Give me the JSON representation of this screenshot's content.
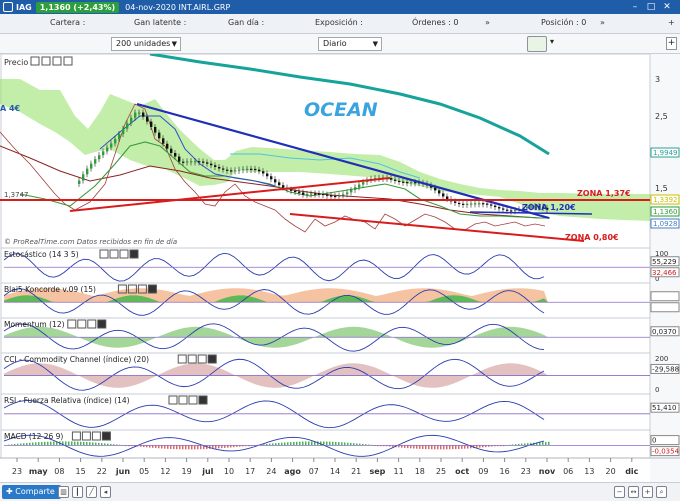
{
  "titlebar": {
    "symbol": "IAG",
    "price_change": "1,1360 (+2,43%)",
    "date_instrument": "04-nov-2020 INT.AIRL.GRP"
  },
  "infobar": {
    "cartera": "Cartera :",
    "gan_latente": "Gan latente :",
    "gan_dia": "Gan día :",
    "exposicion": "Exposición :",
    "ordenes": "Órdenes : 0",
    "posicion": "Posición : 0"
  },
  "toolbar": {
    "units": "200 unidades",
    "period": "Diario"
  },
  "price_panel": {
    "title": "Precio",
    "copyright": "© ProRealTime.com  Datos recibidos en fin de día",
    "annotations": {
      "ocean": "OCEAN",
      "zona_137": "ZONA 1,37€",
      "zona_120": "ZONA 1,20€",
      "zona_080": "ZONA 0,80€",
      "left_4e": "A 4€",
      "left_value": "1,3747"
    },
    "scale_labels": [
      "3",
      "2,5",
      "2",
      "1,5",
      "1"
    ],
    "price_tags": [
      {
        "text": "1,9949",
        "color": "#2aa198"
      },
      {
        "text": "1,3392",
        "color": "#c8c000"
      },
      {
        "text": "1,1360",
        "color": "#2c9e3b"
      },
      {
        "text": "1,0928",
        "color": "#4a7fc1"
      }
    ]
  },
  "indicators": [
    {
      "title": "Estocástico (14 3 5)",
      "scale": [
        "100",
        "0"
      ],
      "tags": [
        "55,229",
        "32,466"
      ]
    },
    {
      "title": "Blai5 Koncorde v.09 (15)",
      "scale": [],
      "tags": [
        "",
        ""
      ]
    },
    {
      "title": "Momentum (12)",
      "scale": [],
      "tags": [
        "0,0370"
      ]
    },
    {
      "title": "CCI - Commodity Channel (índice) (20)",
      "scale": [
        "200",
        "0"
      ],
      "tags": [
        "-29,588"
      ]
    },
    {
      "title": "RSI - Fuerza Relativa (índice) (14)",
      "scale": [],
      "tags": [
        "51,410"
      ]
    },
    {
      "title": "MACD (12 26 9)",
      "scale": [],
      "tags": [
        "0",
        "-0,0354"
      ]
    }
  ],
  "x_axis": {
    "ticks": [
      {
        "label": "23",
        "b": false
      },
      {
        "label": "may",
        "b": true
      },
      {
        "label": "08",
        "b": false
      },
      {
        "label": "15",
        "b": false
      },
      {
        "label": "22",
        "b": false
      },
      {
        "label": "jun",
        "b": true
      },
      {
        "label": "05",
        "b": false
      },
      {
        "label": "12",
        "b": false
      },
      {
        "label": "19",
        "b": false
      },
      {
        "label": "jul",
        "b": true
      },
      {
        "label": "10",
        "b": false
      },
      {
        "label": "17",
        "b": false
      },
      {
        "label": "24",
        "b": false
      },
      {
        "label": "ago",
        "b": true
      },
      {
        "label": "07",
        "b": false
      },
      {
        "label": "14",
        "b": false
      },
      {
        "label": "21",
        "b": false
      },
      {
        "label": "sep",
        "b": true
      },
      {
        "label": "11",
        "b": false
      },
      {
        "label": "18",
        "b": false
      },
      {
        "label": "25",
        "b": false
      },
      {
        "label": "oct",
        "b": true
      },
      {
        "label": "09",
        "b": false
      },
      {
        "label": "16",
        "b": false
      },
      {
        "label": "23",
        "b": false
      },
      {
        "label": "nov",
        "b": true
      },
      {
        "label": "06",
        "b": false
      },
      {
        "label": "13",
        "b": false
      },
      {
        "label": "20",
        "b": false
      },
      {
        "label": "dic",
        "b": true
      }
    ]
  },
  "bottombar": {
    "share": "Comparte"
  }
}
